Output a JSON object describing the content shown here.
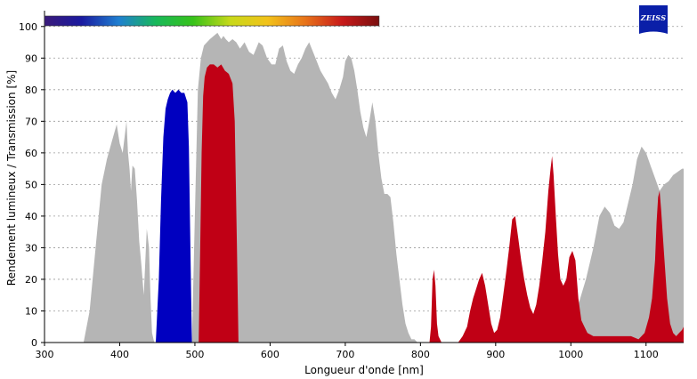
{
  "logo": {
    "text": "ZEISS",
    "color": "#0a1fa8"
  },
  "chart_data": {
    "type": "area",
    "title": "",
    "xlabel": "Longueur d'onde [nm]",
    "ylabel": "Rendement lumineux / Transmission [%]",
    "xlim": [
      300,
      1150
    ],
    "ylim": [
      0,
      105
    ],
    "xticks": [
      300,
      400,
      500,
      600,
      700,
      800,
      900,
      1000,
      1100
    ],
    "yticks": [
      0,
      10,
      20,
      30,
      40,
      50,
      60,
      70,
      80,
      90,
      100
    ],
    "grid": "horizontal dotted",
    "spectrum_bar": {
      "x_start": 300,
      "x_end": 745,
      "colors": [
        "#3a1a7a",
        "#1a1aa0",
        "#1f7fd0",
        "#18b85a",
        "#37c21a",
        "#c8d91a",
        "#f2c21a",
        "#e8741a",
        "#c81a1a",
        "#7a0f0f"
      ]
    },
    "series": [
      {
        "color": "#b5b5b5",
        "x": [
          352,
          360,
          368,
          376,
          383,
          390,
          396,
          400,
          404,
          407,
          409,
          411,
          413,
          415,
          417,
          420,
          423,
          426,
          429,
          432,
          436,
          439,
          441,
          443,
          446,
          449,
          455,
          460,
          470,
          480,
          490,
          496,
          500,
          504,
          508,
          512,
          516,
          520,
          525,
          530,
          535,
          538,
          541,
          545,
          550,
          555,
          560,
          566,
          572,
          578,
          585,
          590,
          596,
          602,
          607,
          612,
          617,
          622,
          627,
          632,
          637,
          642,
          647,
          652,
          657,
          662,
          667,
          672,
          677,
          682,
          687,
          692,
          697,
          700,
          704,
          708,
          712,
          716,
          720,
          724,
          728,
          732,
          736,
          740,
          744,
          748,
          752,
          756,
          760,
          764,
          768,
          772,
          776,
          780,
          784,
          788,
          792,
          796,
          800,
          804,
          808,
          812,
          820,
          830,
          840,
          850,
          860,
          870,
          880,
          900,
          920,
          940,
          960,
          980,
          1000,
          1010,
          1020,
          1030,
          1038,
          1045,
          1052,
          1058,
          1064,
          1070,
          1076,
          1082,
          1088,
          1094,
          1100,
          1106,
          1112,
          1118,
          1124,
          1130,
          1136,
          1142,
          1148,
          1150
        ],
        "y": [
          0,
          10,
          30,
          50,
          58,
          64,
          69,
          63,
          60,
          66,
          70,
          60,
          55,
          48,
          56,
          55,
          45,
          32,
          24,
          15,
          36,
          30,
          14,
          3,
          0,
          0,
          0,
          0,
          0,
          0,
          0,
          0,
          40,
          80,
          90,
          94,
          95,
          96,
          97,
          98,
          96,
          97,
          96,
          95,
          96,
          95,
          93,
          95,
          92,
          91,
          95,
          94,
          90,
          88,
          88,
          93,
          94,
          89,
          86,
          85,
          88,
          90,
          93,
          95,
          92,
          89,
          86,
          84,
          82,
          79,
          77,
          80,
          84,
          89,
          91,
          90,
          86,
          80,
          73,
          68,
          65,
          70,
          76,
          70,
          60,
          52,
          47,
          47,
          46,
          38,
          28,
          20,
          12,
          6,
          3,
          1,
          1,
          0,
          0,
          0,
          0,
          0,
          0,
          0,
          0,
          0,
          0,
          0,
          0,
          0,
          0,
          0,
          0,
          0,
          0,
          12,
          20,
          30,
          40,
          43,
          41,
          37,
          36,
          38,
          44,
          50,
          58,
          62,
          60,
          56,
          52,
          48,
          50,
          51,
          53,
          54,
          55,
          55
        ]
      },
      {
        "color": "#0000c0",
        "x": [
          448,
          452,
          455,
          458,
          461,
          464,
          467,
          470,
          474,
          478,
          482,
          486,
          490,
          492,
          494,
          496
        ],
        "y": [
          0,
          20,
          45,
          65,
          74,
          77,
          79,
          80,
          79,
          80,
          79,
          79,
          76,
          62,
          30,
          0
        ]
      },
      {
        "color": "#c00015",
        "x": [
          505,
          507,
          509,
          511,
          513,
          516,
          520,
          525,
          530,
          535,
          540,
          545,
          550,
          553,
          556,
          558,
          505,
          560
        ],
        "y": [
          0,
          30,
          60,
          78,
          84,
          87,
          88,
          88,
          87,
          88,
          86,
          85,
          82,
          70,
          30,
          0,
          0,
          0
        ]
      },
      {
        "color": "#c00015",
        "x": [
          812,
          814,
          816,
          818,
          820,
          822,
          824,
          826,
          828,
          850,
          856,
          862,
          866,
          870,
          874,
          878,
          882,
          886,
          890,
          894,
          898,
          902,
          906,
          910,
          914,
          918,
          922,
          926,
          930,
          934,
          938,
          942,
          946,
          950,
          954,
          958,
          962,
          966,
          970,
          973,
          975,
          977,
          980,
          983,
          986,
          990,
          994,
          998,
          1002,
          1006,
          1010,
          1014,
          1018,
          1022,
          1030,
          1040,
          1050,
          1060,
          1070,
          1080,
          1090,
          1098,
          1104,
          1108,
          1112,
          1114,
          1116,
          1118,
          1120,
          1124,
          1128,
          1132,
          1136,
          1140,
          1144,
          1148,
          1150
        ],
        "y": [
          0,
          5,
          20,
          23,
          18,
          6,
          2,
          1,
          0,
          0,
          2,
          5,
          10,
          14,
          17,
          20,
          22,
          18,
          12,
          6,
          3,
          4,
          8,
          15,
          22,
          30,
          39,
          40,
          33,
          26,
          20,
          15,
          11,
          9,
          12,
          18,
          26,
          35,
          48,
          55,
          59,
          53,
          40,
          28,
          20,
          18,
          20,
          27,
          29,
          26,
          14,
          7,
          5,
          3,
          2,
          2,
          2,
          2,
          2,
          2,
          1,
          3,
          8,
          14,
          26,
          38,
          46,
          48,
          42,
          28,
          14,
          6,
          3,
          2,
          3,
          4,
          5
        ]
      }
    ]
  }
}
